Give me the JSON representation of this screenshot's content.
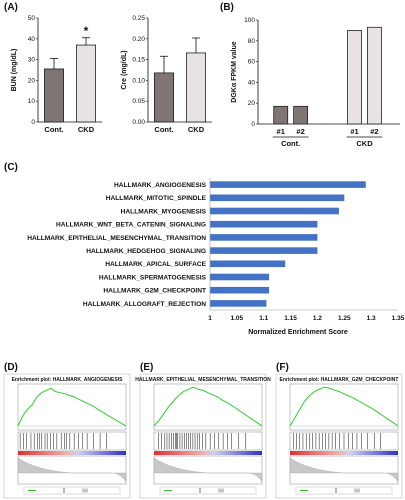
{
  "panel_labels": {
    "A": "(A)",
    "B": "(B)",
    "C": "(C)",
    "D": "(D)",
    "E": "(E)",
    "F": "(F)"
  },
  "colors": {
    "cont_bar": "#7f7572",
    "ckd_bar": "#e8e2e2",
    "enrich_bar": "#4472c4",
    "es_line": "#33cc33"
  },
  "chart_data": [
    {
      "id": "bun",
      "type": "bar",
      "categories": [
        "Cont.",
        "CKD"
      ],
      "values": [
        25.5,
        37
      ],
      "errors": [
        5,
        3.5
      ],
      "ylabel": "BUN (mg/dL)",
      "ylim": [
        0,
        50
      ],
      "yticks": [
        "0",
        "10",
        "20",
        "30",
        "40",
        "50"
      ],
      "annotation": "*"
    },
    {
      "id": "cre",
      "type": "bar",
      "categories": [
        "Cont.",
        "CKD"
      ],
      "values": [
        0.118,
        0.166
      ],
      "errors": [
        0.04,
        0.036
      ],
      "ylabel": "Cre (mg/dL)",
      "ylim": [
        0,
        0.25
      ],
      "yticks": [
        "0.00",
        "0.05",
        "0.10",
        "0.15",
        "0.20",
        "0.25"
      ]
    },
    {
      "id": "dgk",
      "type": "bar",
      "categories": [
        "#1",
        "#2",
        "#1",
        "#2"
      ],
      "groups": [
        "Cont.",
        "CKD"
      ],
      "values": [
        17,
        17,
        90,
        93
      ],
      "ylabel": "DGKα FPKM value",
      "ylim": [
        0,
        100
      ],
      "yticks": [
        "0",
        "20",
        "40",
        "60",
        "80",
        "100"
      ]
    },
    {
      "id": "nes",
      "type": "bar",
      "orientation": "horizontal",
      "categories": [
        "HALLMARK_ANGIOGENESIS",
        "HALLMARK_MITOTIC_SPINDLE",
        "HALLMARK_MYOGENESIS",
        "HALLMARK_WNT_BETA_CATENIN_SIGNALING",
        "HALLMARK_EPITHELIAL_MESENCHYMAL_TRANSITION",
        "HALLMARK_HEDGEHOG_SIGNALING",
        "HALLMARK_APICAL_SURFACE",
        "HALLMARK_SPERMATOGENESIS",
        "HALLMARK_G2M_CHECKPOINT",
        "HALLMARK_ALLOGRAFT_REJECTION"
      ],
      "values": [
        1.29,
        1.25,
        1.24,
        1.2,
        1.2,
        1.2,
        1.14,
        1.11,
        1.11,
        1.105
      ],
      "xlabel": "Normalized Enrichment Score",
      "xlim": [
        1,
        1.35
      ],
      "xticks": [
        "1",
        "1.05",
        "1.1",
        "1.15",
        "1.2",
        "1.25",
        "1.3",
        "1.35"
      ]
    },
    {
      "id": "gsea_angio",
      "type": "line",
      "title": "Enrichment plot: HALLMARK_ANGIOGENESIS",
      "es": [
        0,
        0.18,
        0.3,
        0.38,
        0.52,
        0.6,
        0.64,
        0.68,
        0.62,
        0.6,
        0.58,
        0.55,
        0.52,
        0.48,
        0.44,
        0.4,
        0.36,
        0.3,
        0.25,
        0.2,
        0.15,
        0.1,
        0.05,
        0
      ],
      "hits": [
        0.02,
        0.05,
        0.08,
        0.12,
        0.15,
        0.18,
        0.2,
        0.22,
        0.25,
        0.27,
        0.3,
        0.33,
        0.36,
        0.4,
        0.43,
        0.45,
        0.48,
        0.52,
        0.56,
        0.6,
        0.64,
        0.7,
        0.76,
        0.82
      ]
    },
    {
      "id": "gsea_emt",
      "type": "line",
      "title": "HALLMARK_EPITHELIAL_MESENCHYMAL_TRANSITION",
      "es": [
        0,
        0.1,
        0.22,
        0.35,
        0.45,
        0.55,
        0.62,
        0.66,
        0.7,
        0.66,
        0.64,
        0.6,
        0.56,
        0.52,
        0.46,
        0.42,
        0.36,
        0.3,
        0.24,
        0.18,
        0.12,
        0.06,
        0
      ],
      "hits": [
        0.04,
        0.07,
        0.1,
        0.12,
        0.14,
        0.16,
        0.18,
        0.2,
        0.21,
        0.22,
        0.24,
        0.26,
        0.28,
        0.3,
        0.32,
        0.34,
        0.36,
        0.38,
        0.4,
        0.42,
        0.45,
        0.48,
        0.52,
        0.56,
        0.6,
        0.64,
        0.68,
        0.72,
        0.78,
        0.85
      ]
    },
    {
      "id": "gsea_g2m",
      "type": "line",
      "title": "Enrichment plot: HALLMARK_G2M_CHECKPOINT",
      "es": [
        0,
        0.15,
        0.3,
        0.45,
        0.55,
        0.62,
        0.66,
        0.7,
        0.68,
        0.65,
        0.62,
        0.58,
        0.54,
        0.5,
        0.45,
        0.4,
        0.35,
        0.3,
        0.24,
        0.18,
        0.12,
        0.06,
        0
      ],
      "hits": [
        0.03,
        0.06,
        0.09,
        0.12,
        0.15,
        0.18,
        0.21,
        0.24,
        0.27,
        0.3,
        0.33,
        0.36,
        0.39,
        0.42,
        0.46,
        0.5,
        0.54,
        0.58,
        0.62,
        0.66,
        0.72,
        0.78,
        0.84
      ]
    }
  ]
}
